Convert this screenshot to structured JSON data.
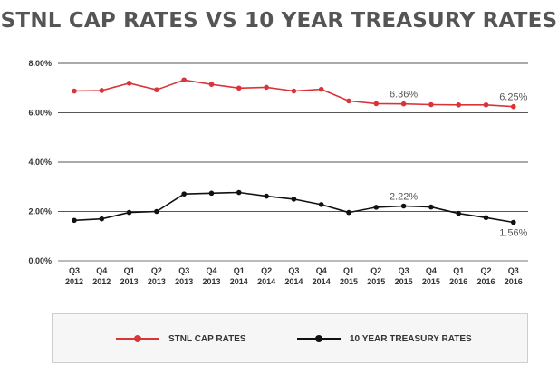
{
  "chart_data": {
    "type": "line",
    "title": "STNL CAP RATES VS 10 YEAR TREASURY RATES",
    "xlabel": "",
    "ylabel": "",
    "categories": [
      [
        "Q3",
        "2012"
      ],
      [
        "Q4",
        "2012"
      ],
      [
        "Q1",
        "2013"
      ],
      [
        "Q2",
        "2013"
      ],
      [
        "Q3",
        "2013"
      ],
      [
        "Q4",
        "2013"
      ],
      [
        "Q1",
        "2014"
      ],
      [
        "Q2",
        "2014"
      ],
      [
        "Q3",
        "2014"
      ],
      [
        "Q4",
        "2014"
      ],
      [
        "Q1",
        "2015"
      ],
      [
        "Q2",
        "2015"
      ],
      [
        "Q3",
        "2015"
      ],
      [
        "Q4",
        "2015"
      ],
      [
        "Q1",
        "2016"
      ],
      [
        "Q2",
        "2016"
      ],
      [
        "Q3",
        "2016"
      ]
    ],
    "y_ticks": [
      "0.00%",
      "2.00%",
      "4.00%",
      "6.00%",
      "8.00%"
    ],
    "ylim": [
      0,
      8
    ],
    "grid": true,
    "legend_position": "bottom",
    "series": [
      {
        "name": "STNL CAP RATES",
        "color": "#d9343a",
        "values": [
          6.88,
          6.9,
          7.2,
          6.93,
          7.33,
          7.15,
          7.0,
          7.03,
          6.88,
          6.95,
          6.48,
          6.37,
          6.36,
          6.33,
          6.32,
          6.32,
          6.25
        ]
      },
      {
        "name": "10 YEAR TREASURY RATES",
        "color": "#111111",
        "values": [
          1.64,
          1.7,
          1.96,
          2.0,
          2.71,
          2.74,
          2.77,
          2.62,
          2.5,
          2.28,
          1.96,
          2.17,
          2.22,
          2.18,
          1.92,
          1.75,
          1.56
        ]
      }
    ],
    "annotations": [
      {
        "series": 0,
        "index": 12,
        "text": "6.36%",
        "position": "above"
      },
      {
        "series": 0,
        "index": 16,
        "text": "6.25%",
        "position": "above"
      },
      {
        "series": 1,
        "index": 12,
        "text": "2.22%",
        "position": "above"
      },
      {
        "series": 1,
        "index": 16,
        "text": "1.56%",
        "position": "below"
      }
    ]
  }
}
